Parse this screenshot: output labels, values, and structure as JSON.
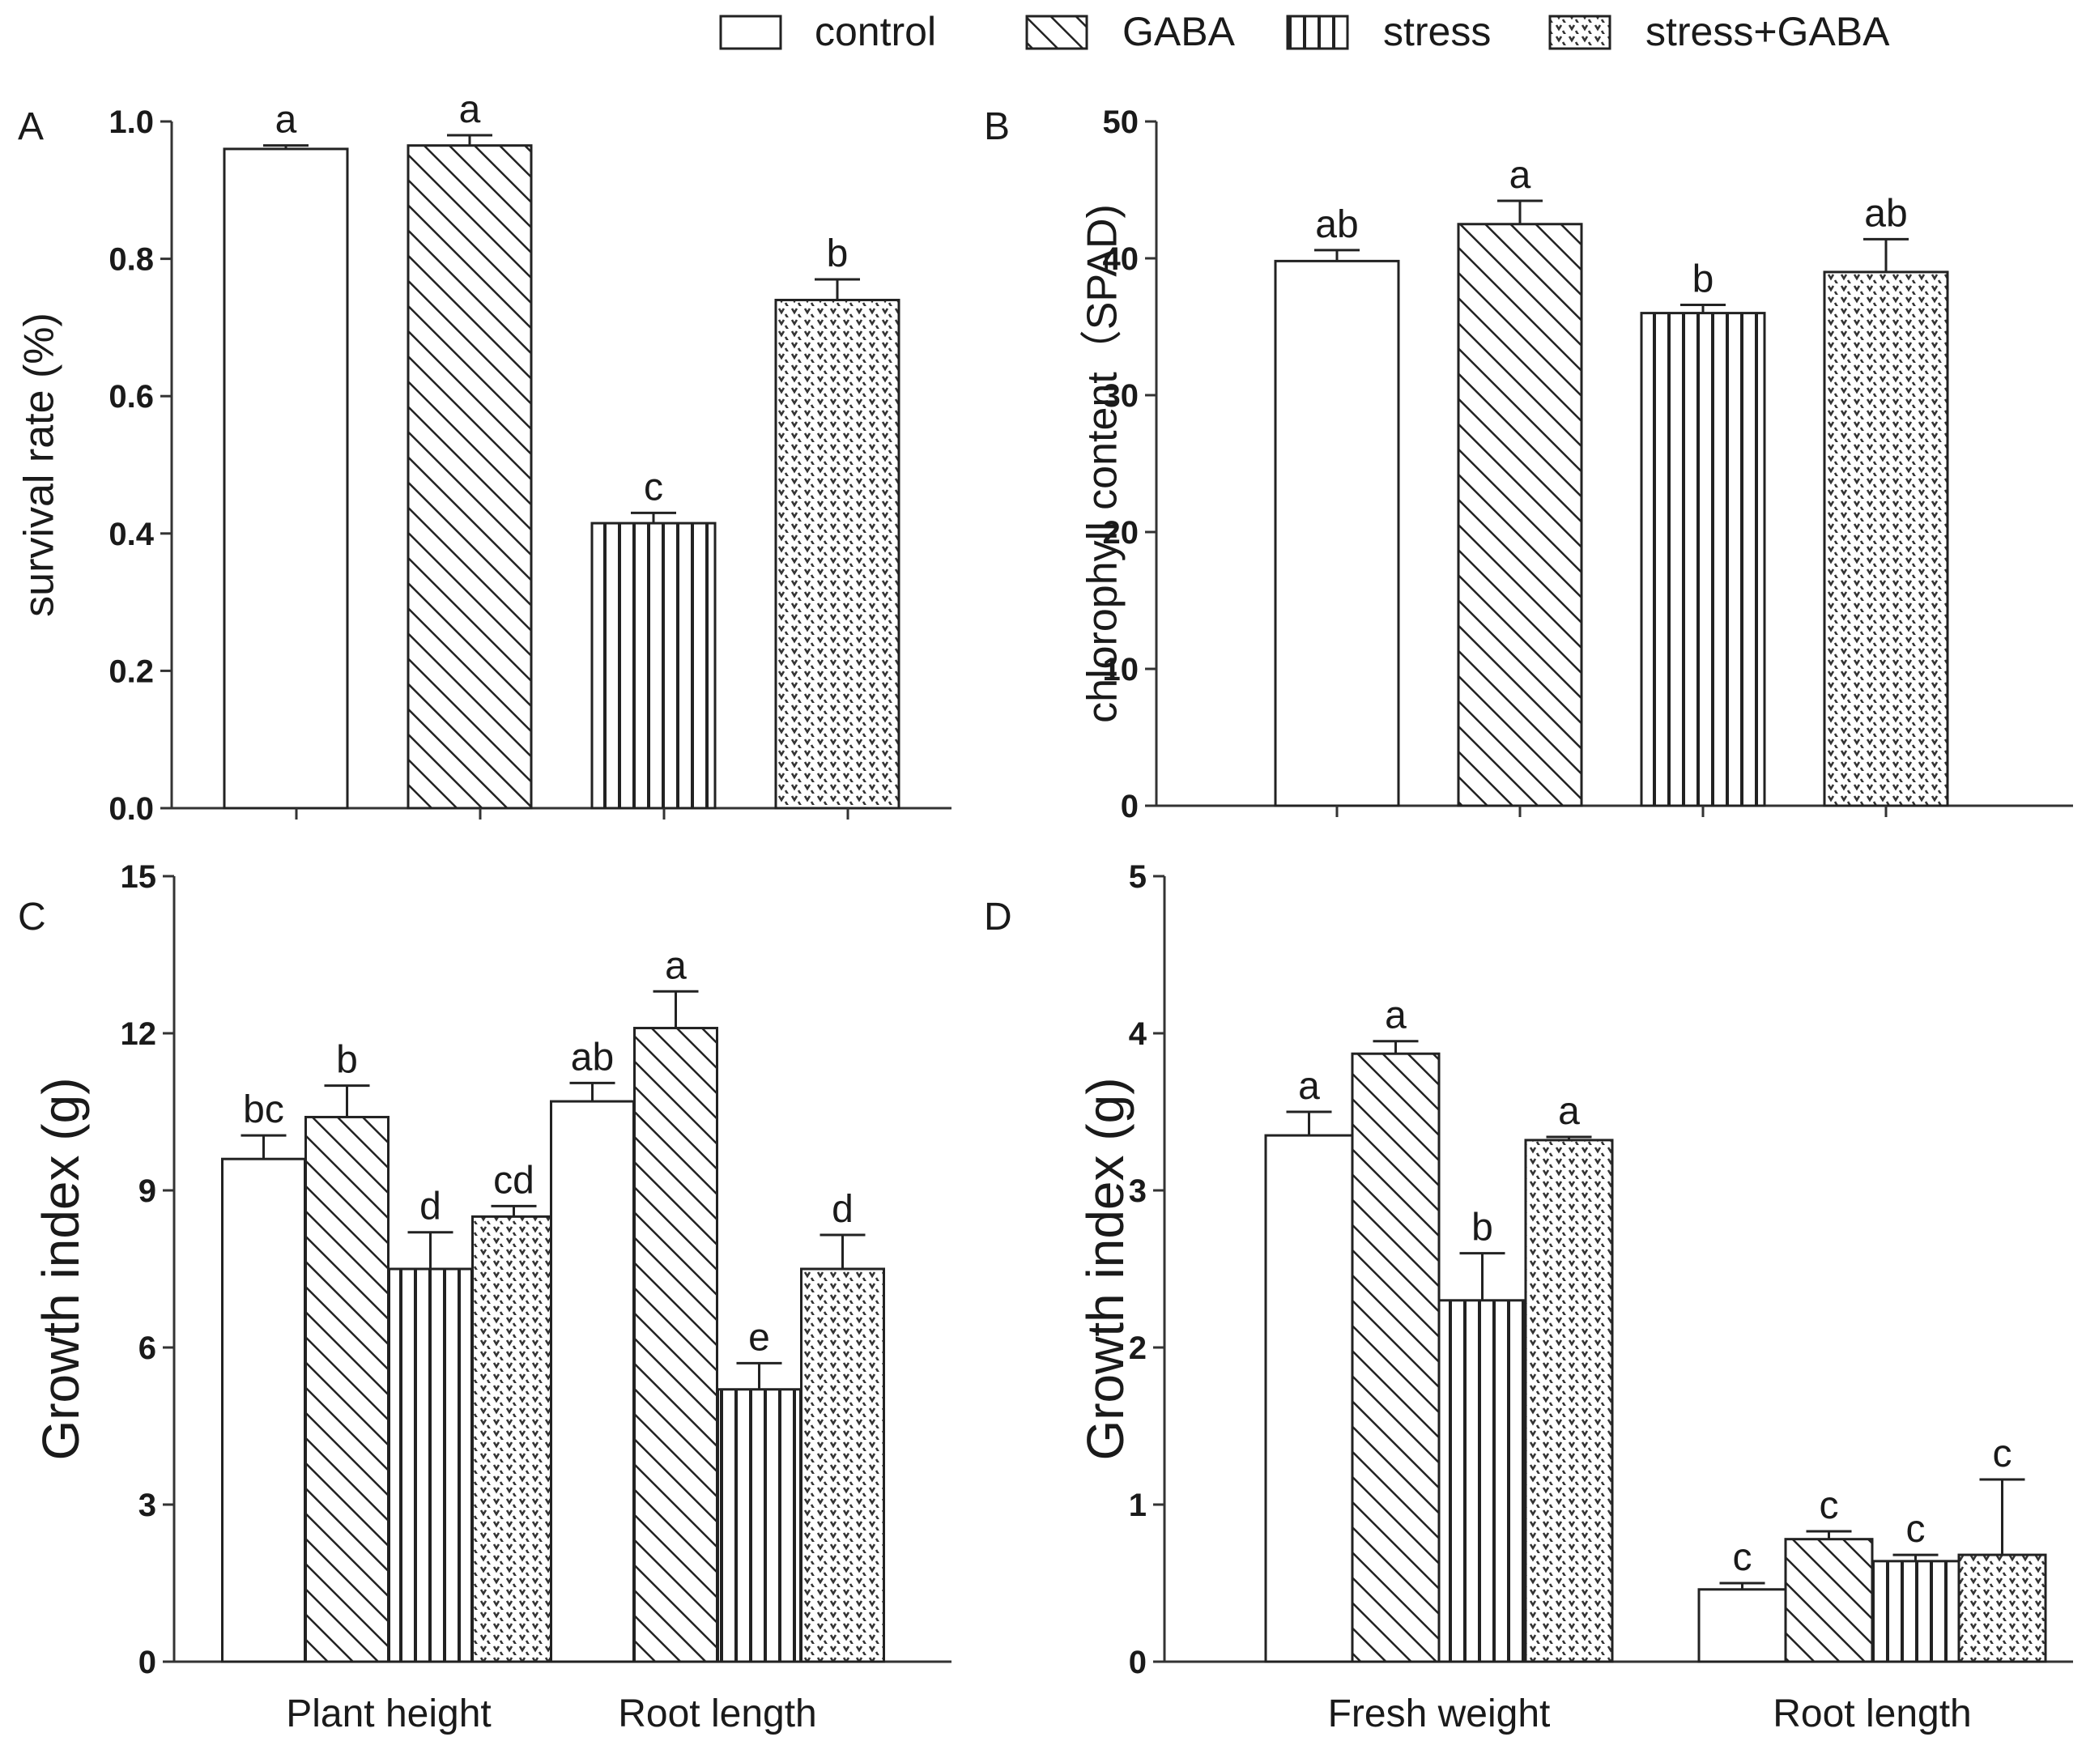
{
  "legend": {
    "items": [
      {
        "label": "control",
        "pattern": "none"
      },
      {
        "label": "GABA",
        "pattern": "diagonal"
      },
      {
        "label": "stress",
        "pattern": "vertical"
      },
      {
        "label": "stress+GABA",
        "pattern": "dots"
      }
    ]
  },
  "chart_data": [
    {
      "panel": "A",
      "type": "bar",
      "categories": [
        ""
      ],
      "series": [
        {
          "name": "control",
          "values": [
            0.96
          ],
          "errors": [
            0.005
          ],
          "letters": [
            "a"
          ]
        },
        {
          "name": "GABA",
          "values": [
            0.965
          ],
          "errors": [
            0.015
          ],
          "letters": [
            "a"
          ]
        },
        {
          "name": "stress",
          "values": [
            0.415
          ],
          "errors": [
            0.015
          ],
          "letters": [
            "c"
          ]
        },
        {
          "name": "stress+GABA",
          "values": [
            0.74
          ],
          "errors": [
            0.03
          ],
          "letters": [
            "b"
          ]
        }
      ],
      "ylabel": "survival rate (%)",
      "ylim": [
        0,
        1.0
      ],
      "yticks": [
        "0.0",
        "0.2",
        "0.4",
        "0.6",
        "0.8",
        "1.0"
      ]
    },
    {
      "panel": "B",
      "type": "bar",
      "categories": [
        ""
      ],
      "series": [
        {
          "name": "control",
          "values": [
            39.8
          ],
          "errors": [
            0.8
          ],
          "letters": [
            "ab"
          ]
        },
        {
          "name": "GABA",
          "values": [
            42.5
          ],
          "errors": [
            1.7
          ],
          "letters": [
            "a"
          ]
        },
        {
          "name": "stress",
          "values": [
            36.0
          ],
          "errors": [
            0.6
          ],
          "letters": [
            "b"
          ]
        },
        {
          "name": "stress+GABA",
          "values": [
            39.0
          ],
          "errors": [
            2.4
          ],
          "letters": [
            "ab"
          ]
        }
      ],
      "ylabel": "chlorophyll content（SPAD)",
      "ylim": [
        0,
        50
      ],
      "yticks": [
        "0",
        "10",
        "20",
        "30",
        "40",
        "50"
      ]
    },
    {
      "panel": "C",
      "type": "bar",
      "categories": [
        "Plant height",
        "Root length"
      ],
      "series": [
        {
          "name": "control",
          "values": [
            9.6,
            10.7
          ],
          "errors": [
            0.45,
            0.35
          ],
          "letters": [
            "bc",
            "ab"
          ]
        },
        {
          "name": "GABA",
          "values": [
            10.4,
            12.1
          ],
          "errors": [
            0.6,
            0.7
          ],
          "letters": [
            "b",
            "a"
          ]
        },
        {
          "name": "stress",
          "values": [
            7.5,
            5.2
          ],
          "errors": [
            0.7,
            0.5
          ],
          "letters": [
            "d",
            "e"
          ]
        },
        {
          "name": "stress+GABA",
          "values": [
            8.5,
            7.5
          ],
          "errors": [
            0.2,
            0.65
          ],
          "letters": [
            "cd",
            "d"
          ]
        }
      ],
      "ylabel": "Growth index (g)",
      "ylim": [
        0,
        15
      ],
      "yticks": [
        "0",
        "3",
        "6",
        "9",
        "12",
        "15"
      ]
    },
    {
      "panel": "D",
      "type": "bar",
      "categories": [
        "Fresh weight",
        "Root length"
      ],
      "series": [
        {
          "name": "control",
          "values": [
            3.35,
            0.46
          ],
          "errors": [
            0.15,
            0.04
          ],
          "letters": [
            "a",
            "c"
          ]
        },
        {
          "name": "GABA",
          "values": [
            3.87,
            0.78
          ],
          "errors": [
            0.08,
            0.05
          ],
          "letters": [
            "a",
            "c"
          ]
        },
        {
          "name": "stress",
          "values": [
            2.3,
            0.64
          ],
          "errors": [
            0.3,
            0.04
          ],
          "letters": [
            "b",
            "c"
          ]
        },
        {
          "name": "stress+GABA",
          "values": [
            3.32,
            0.68
          ],
          "errors": [
            0.02,
            0.48
          ],
          "letters": [
            "a",
            "c"
          ]
        }
      ],
      "ylabel": "Growth index (g)",
      "ylim": [
        0,
        5
      ],
      "yticks": [
        "0",
        "1",
        "2",
        "3",
        "4",
        "5"
      ]
    }
  ]
}
